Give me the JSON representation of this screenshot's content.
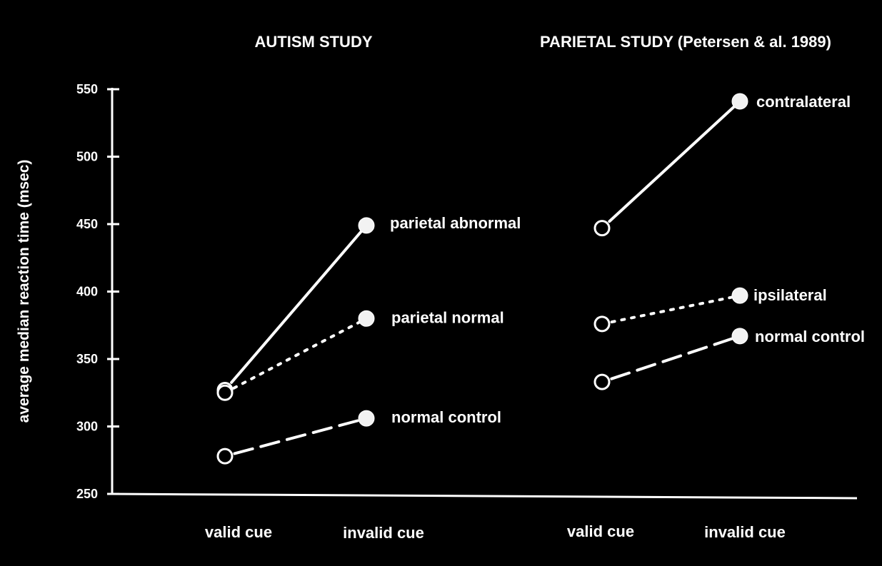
{
  "colors": {
    "background": "#000000",
    "foreground": "#ffffff",
    "marker_fill": "#f2f2f2"
  },
  "chart_data": {
    "type": "line",
    "ylabel": "average median reaction time (msec)",
    "ylim": [
      250,
      550
    ],
    "yticks": [
      250,
      300,
      350,
      400,
      450,
      500,
      550
    ],
    "grid": false,
    "legend": "inline labels at line ends",
    "panels": [
      {
        "title": "AUTISM STUDY",
        "categories": [
          "valid cue",
          "invalid cue"
        ],
        "series": [
          {
            "name": "parietal abnormal",
            "style": "solid",
            "values": [
              327,
              449
            ]
          },
          {
            "name": "parietal normal",
            "style": "dotted",
            "values": [
              325,
              380
            ]
          },
          {
            "name": "normal control",
            "style": "dashed",
            "values": [
              278,
              306
            ]
          }
        ]
      },
      {
        "title": "PARIETAL STUDY (Petersen & al. 1989)",
        "categories": [
          "valid cue",
          "invalid cue"
        ],
        "series": [
          {
            "name": "contralateral",
            "style": "solid",
            "values": [
              447,
              541
            ]
          },
          {
            "name": "ipsilateral",
            "style": "dotted",
            "values": [
              376,
              397
            ]
          },
          {
            "name": "normal control",
            "style": "dashed",
            "values": [
              333,
              367
            ]
          }
        ]
      }
    ]
  }
}
